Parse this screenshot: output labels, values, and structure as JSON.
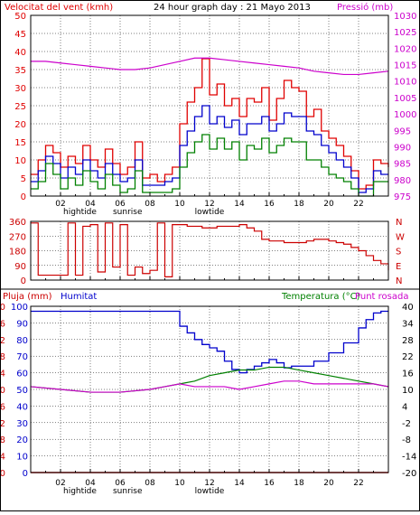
{
  "colors": {
    "wind_max": "#e00000",
    "wind_avg": "#0000cc",
    "wind_min": "#008000",
    "pressure": "#cc00cc",
    "direction": "#cc0000",
    "rain": "#cc0000",
    "humidity": "#0000cc",
    "temperature": "#008000",
    "dewpoint": "#cc00cc",
    "grid": "#000000",
    "frame": "#000000"
  },
  "chart_data": [
    {
      "type": "line",
      "title": "24 hour graph day : 21 Mayo 2013",
      "ylabel_left": "Velocitat del vent (kmh)",
      "ylabel_right": "Pressió (mb)",
      "ylim_left": [
        0,
        50
      ],
      "ylim_right": [
        975,
        1030
      ],
      "yticks_left": [
        "0",
        "5",
        "10",
        "15",
        "20",
        "25",
        "30",
        "35",
        "40",
        "45",
        "50"
      ],
      "yticks_right": [
        "975",
        "980",
        "985",
        "990",
        "995",
        "1000",
        "1005",
        "1010",
        "1015",
        "1020",
        "1025",
        "1030"
      ],
      "xticks": [
        "02",
        "04",
        "06",
        "08",
        "10",
        "12",
        "14",
        "16",
        "18",
        "20",
        "22"
      ],
      "annotations": [
        "hightide",
        "sunrise",
        "lowtide"
      ],
      "grid": true,
      "series": [
        {
          "key": "wind_max",
          "x": [
            0,
            0.5,
            1,
            1.5,
            2,
            2.5,
            3,
            3.5,
            4,
            4.5,
            5,
            5.5,
            6,
            6.5,
            7,
            7.5,
            8,
            8.5,
            9,
            9.5,
            10,
            10.5,
            11,
            11.5,
            12,
            12.5,
            13,
            13.5,
            14,
            14.5,
            15,
            15.5,
            16,
            16.5,
            17,
            17.5,
            18,
            18.5,
            19,
            19.5,
            20,
            20.5,
            21,
            21.5,
            22,
            22.5,
            23,
            23.5,
            24
          ],
          "values": [
            6,
            10,
            14,
            12,
            8,
            11,
            9,
            14,
            10,
            8,
            13,
            9,
            6,
            8,
            15,
            5,
            6,
            4,
            6,
            8,
            20,
            26,
            30,
            38,
            28,
            31,
            25,
            27,
            22,
            27,
            26,
            30,
            21,
            27,
            32,
            30,
            29,
            22,
            24,
            18,
            16,
            14,
            11,
            7,
            2,
            3,
            10,
            9,
            8
          ]
        },
        {
          "key": "wind_avg",
          "x": [
            0,
            0.5,
            1,
            1.5,
            2,
            2.5,
            3,
            3.5,
            4,
            4.5,
            5,
            5.5,
            6,
            6.5,
            7,
            7.5,
            8,
            8.5,
            9,
            9.5,
            10,
            10.5,
            11,
            11.5,
            12,
            12.5,
            13,
            13.5,
            14,
            14.5,
            15,
            15.5,
            16,
            16.5,
            17,
            17.5,
            18,
            18.5,
            19,
            19.5,
            20,
            20.5,
            21,
            21.5,
            22,
            22.5,
            23,
            23.5,
            24
          ],
          "values": [
            4,
            7,
            11,
            9,
            5,
            8,
            6,
            10,
            7,
            5,
            9,
            6,
            4,
            5,
            10,
            3,
            3,
            3,
            4,
            5,
            14,
            18,
            22,
            25,
            20,
            22,
            19,
            21,
            17,
            20,
            20,
            22,
            18,
            20,
            23,
            22,
            22,
            18,
            17,
            14,
            12,
            10,
            8,
            5,
            1,
            2,
            7,
            6,
            6
          ]
        },
        {
          "key": "wind_min",
          "x": [
            0,
            0.5,
            1,
            1.5,
            2,
            2.5,
            3,
            3.5,
            4,
            4.5,
            5,
            5.5,
            6,
            6.5,
            7,
            7.5,
            8,
            8.5,
            9,
            9.5,
            10,
            10.5,
            11,
            11.5,
            12,
            12.5,
            13,
            13.5,
            14,
            14.5,
            15,
            15.5,
            16,
            16.5,
            17,
            17.5,
            18,
            18.5,
            19,
            19.5,
            20,
            20.5,
            21,
            21.5,
            22,
            22.5,
            23,
            23.5,
            24
          ],
          "values": [
            2,
            4,
            9,
            6,
            2,
            5,
            3,
            7,
            4,
            2,
            6,
            3,
            1,
            2,
            7,
            1,
            1,
            1,
            1,
            2,
            8,
            12,
            15,
            17,
            13,
            16,
            13,
            15,
            10,
            14,
            13,
            16,
            12,
            14,
            16,
            15,
            15,
            10,
            10,
            8,
            6,
            5,
            4,
            2,
            0,
            0,
            4,
            4,
            4
          ]
        },
        {
          "key": "pressure",
          "axis": "right",
          "x": [
            0,
            1,
            2,
            3,
            4,
            5,
            6,
            7,
            8,
            9,
            10,
            11,
            12,
            13,
            14,
            15,
            16,
            17,
            18,
            19,
            20,
            21,
            22,
            23,
            24
          ],
          "values": [
            1016,
            1016,
            1015.5,
            1015,
            1014.5,
            1014,
            1013.5,
            1013.5,
            1014,
            1015,
            1016,
            1017,
            1017,
            1016.5,
            1016,
            1015.5,
            1015,
            1014.5,
            1014,
            1013,
            1012.5,
            1012,
            1012,
            1012.5,
            1013
          ]
        }
      ]
    },
    {
      "type": "line",
      "ylim": [
        0,
        360
      ],
      "yticks_left": [
        "0",
        "90",
        "180",
        "270",
        "360"
      ],
      "yticks_right": [
        "N",
        "E",
        "S",
        "W",
        "N"
      ],
      "grid": true,
      "series": [
        {
          "key": "direction",
          "x": [
            0,
            0.5,
            1,
            1.5,
            2,
            2.5,
            3,
            3.5,
            4,
            4.5,
            5,
            5.5,
            6,
            6.5,
            7,
            7.5,
            8,
            8.5,
            9,
            9.5,
            10,
            10.5,
            11,
            11.5,
            12,
            12.5,
            13,
            13.5,
            14,
            14.5,
            15,
            15.5,
            16,
            16.5,
            17,
            17.5,
            18,
            18.5,
            19,
            19.5,
            20,
            20.5,
            21,
            21.5,
            22,
            22.5,
            23,
            23.5,
            24
          ],
          "values": [
            350,
            30,
            30,
            30,
            30,
            350,
            30,
            330,
            340,
            50,
            350,
            80,
            340,
            30,
            80,
            40,
            60,
            350,
            20,
            340,
            340,
            330,
            330,
            320,
            320,
            330,
            330,
            330,
            340,
            320,
            300,
            250,
            240,
            240,
            230,
            230,
            230,
            240,
            250,
            250,
            240,
            230,
            220,
            200,
            180,
            150,
            120,
            100,
            60
          ]
        }
      ]
    },
    {
      "type": "line",
      "ylabel_left": "Pluja (mm)",
      "ylabel_left2": "Humitat",
      "ylabel_right": "Temperatura (°C)",
      "ylabel_right2": "Punt rosada",
      "ylim_left": [
        0,
        100
      ],
      "ylim_right": [
        -20,
        40
      ],
      "yticks_left_rain": [
        "0",
        "4",
        "8",
        "12",
        "16",
        "20",
        "24",
        "28",
        "32",
        "36",
        "40"
      ],
      "yticks_left_hum": [
        "0",
        "10",
        "20",
        "30",
        "40",
        "50",
        "60",
        "70",
        "80",
        "90",
        "100"
      ],
      "yticks_right": [
        "-20",
        "-14",
        "-8",
        "-2",
        "4",
        "10",
        "16",
        "22",
        "28",
        "34",
        "40"
      ],
      "xticks": [
        "02",
        "04",
        "06",
        "08",
        "10",
        "12",
        "14",
        "16",
        "18",
        "20",
        "22"
      ],
      "annotations": [
        "hightide",
        "sunrise",
        "lowtide"
      ],
      "grid": true,
      "series": [
        {
          "key": "humidity",
          "x": [
            0,
            1,
            2,
            3,
            4,
            5,
            6,
            7,
            8,
            9,
            9.5,
            10,
            10.5,
            11,
            11.5,
            12,
            12.5,
            13,
            13.5,
            14,
            14.5,
            15,
            15.5,
            16,
            16.5,
            17,
            17.5,
            18,
            19,
            20,
            21,
            22,
            22.5,
            23,
            23.5,
            24
          ],
          "values": [
            97,
            97,
            97,
            97,
            97,
            97,
            97,
            97,
            97,
            97,
            97,
            88,
            84,
            80,
            77,
            75,
            73,
            67,
            62,
            60,
            62,
            64,
            66,
            68,
            66,
            63,
            64,
            64,
            67,
            72,
            78,
            87,
            92,
            96,
            97,
            97
          ]
        },
        {
          "key": "rain",
          "x": [
            0,
            24
          ],
          "values": [
            0,
            0
          ]
        },
        {
          "key": "temperature",
          "axis": "right",
          "x": [
            0,
            2,
            4,
            6,
            8,
            9,
            10,
            11,
            12,
            13,
            14,
            15,
            16,
            17,
            18,
            19,
            20,
            21,
            22,
            23,
            24
          ],
          "values": [
            11,
            10,
            9,
            9,
            10,
            11,
            12,
            13,
            15,
            16,
            17,
            17,
            18,
            18,
            17,
            16,
            15,
            14,
            13,
            12,
            11
          ]
        },
        {
          "key": "dewpoint",
          "axis": "right",
          "x": [
            0,
            2,
            4,
            6,
            8,
            9,
            10,
            11,
            12,
            13,
            14,
            15,
            16,
            17,
            18,
            19,
            20,
            21,
            22,
            23,
            24
          ],
          "values": [
            11,
            10,
            9,
            9,
            10,
            11,
            12,
            11,
            11,
            11,
            10,
            11,
            12,
            13,
            13,
            12,
            12,
            12,
            12,
            12,
            11
          ]
        }
      ]
    }
  ]
}
